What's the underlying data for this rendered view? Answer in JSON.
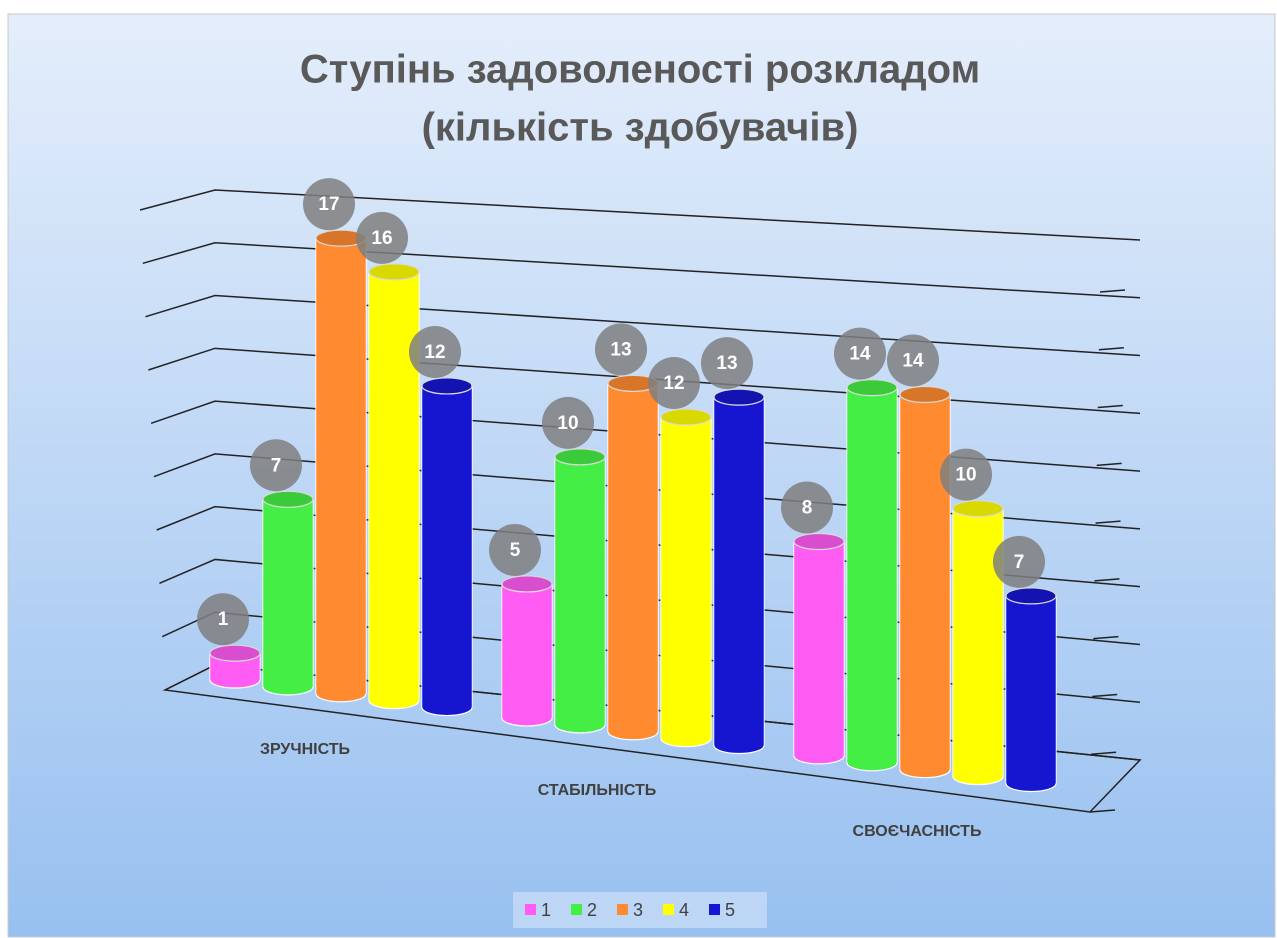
{
  "chart_data": {
    "type": "bar3d",
    "title": [
      "Ступінь задоволеності розкладом",
      "(кількість здобувачів)"
    ],
    "categories": [
      "ЗРУЧНІСТЬ",
      "СТАБІЛЬНІСТЬ",
      "СВОЄЧАСНІСТЬ"
    ],
    "series": [
      {
        "name": "1",
        "color": "#ff5cf4",
        "values": [
          1,
          5,
          8
        ]
      },
      {
        "name": "2",
        "color": "#44ee44",
        "values": [
          7,
          10,
          14
        ]
      },
      {
        "name": "3",
        "color": "#ff8a30",
        "values": [
          17,
          13,
          14
        ]
      },
      {
        "name": "4",
        "color": "#ffff00",
        "values": [
          16,
          12,
          10
        ]
      },
      {
        "name": "5",
        "color": "#1616d0",
        "values": [
          12,
          13,
          7
        ]
      }
    ],
    "ylim": [
      0,
      18
    ],
    "yticks": [
      0,
      2,
      4,
      6,
      8,
      10,
      12,
      14,
      16,
      18
    ],
    "grid": true,
    "legend": "bottom"
  }
}
